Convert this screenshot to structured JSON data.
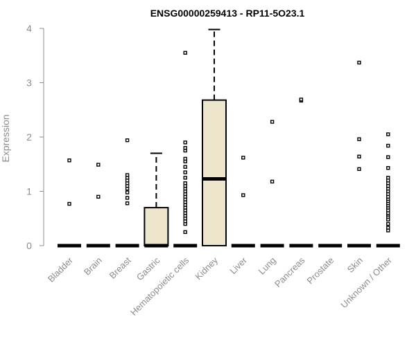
{
  "chart_data": {
    "type": "boxplot",
    "title": "ENSG00000259413 - RP11-5O23.1",
    "ylabel": "Expression",
    "xlabel": "",
    "ylim": [
      0,
      4
    ],
    "yticks": [
      0,
      1,
      2,
      3,
      4
    ],
    "grid": false,
    "legend": "none",
    "box_fill": "#ede6cd",
    "categories": [
      "Bladder",
      "Brain",
      "Breast",
      "Gastric",
      "Hematopoietic cells",
      "Kidney",
      "Liver",
      "Lung",
      "Pancreas",
      "Prostate",
      "Skin",
      "Unknown / Other"
    ],
    "boxes": [
      {
        "name": "Bladder",
        "min": 0,
        "q1": 0,
        "median": 0,
        "q3": 0,
        "max": 0,
        "outliers": [
          0.77,
          1.57
        ]
      },
      {
        "name": "Brain",
        "min": 0,
        "q1": 0,
        "median": 0,
        "q3": 0,
        "max": 0,
        "outliers": [
          0.9,
          1.49
        ]
      },
      {
        "name": "Breast",
        "min": 0,
        "q1": 0,
        "median": 0,
        "q3": 0,
        "max": 0,
        "outliers": [
          0.78,
          0.88,
          0.98,
          1.05,
          1.1,
          1.15,
          1.2,
          1.25,
          1.3,
          1.94
        ]
      },
      {
        "name": "Gastric",
        "min": 0,
        "q1": 0,
        "median": 0,
        "q3": 0.7,
        "max": 1.7,
        "outliers": []
      },
      {
        "name": "Hematopoietic cells",
        "min": 0,
        "q1": 0,
        "median": 0,
        "q3": 0,
        "max": 0,
        "outliers": [
          0.25,
          0.4,
          0.45,
          0.5,
          0.55,
          0.6,
          0.65,
          0.7,
          0.75,
          0.8,
          0.85,
          0.9,
          0.95,
          1.0,
          1.05,
          1.1,
          1.15,
          1.25,
          1.35,
          1.45,
          1.55,
          1.6,
          1.75,
          1.8,
          1.9,
          3.55
        ]
      },
      {
        "name": "Kidney",
        "min": 0,
        "q1": 0,
        "median": 1.23,
        "q3": 2.68,
        "max": 3.98,
        "outliers": []
      },
      {
        "name": "Liver",
        "min": 0,
        "q1": 0,
        "median": 0,
        "q3": 0,
        "max": 0,
        "outliers": [
          0.93,
          1.62
        ]
      },
      {
        "name": "Lung",
        "min": 0,
        "q1": 0,
        "median": 0,
        "q3": 0,
        "max": 0,
        "outliers": [
          1.18,
          2.28
        ]
      },
      {
        "name": "Pancreas",
        "min": 0,
        "q1": 0,
        "median": 0,
        "q3": 0,
        "max": 0,
        "outliers": [
          2.67,
          2.69
        ]
      },
      {
        "name": "Prostate",
        "min": 0,
        "q1": 0,
        "median": 0,
        "q3": 0,
        "max": 0,
        "outliers": []
      },
      {
        "name": "Skin",
        "min": 0,
        "q1": 0,
        "median": 0,
        "q3": 0,
        "max": 0,
        "outliers": [
          1.41,
          1.64,
          1.96,
          3.37
        ]
      },
      {
        "name": "Unknown / Other",
        "min": 0,
        "q1": 0,
        "median": 0,
        "q3": 0,
        "max": 0,
        "outliers": [
          0.28,
          0.33,
          0.4,
          0.48,
          0.53,
          0.57,
          0.6,
          0.65,
          0.7,
          0.74,
          0.78,
          0.82,
          0.86,
          0.9,
          0.95,
          1.0,
          1.05,
          1.1,
          1.15,
          1.2,
          1.25,
          1.43,
          1.63,
          1.84,
          2.05
        ]
      }
    ]
  }
}
